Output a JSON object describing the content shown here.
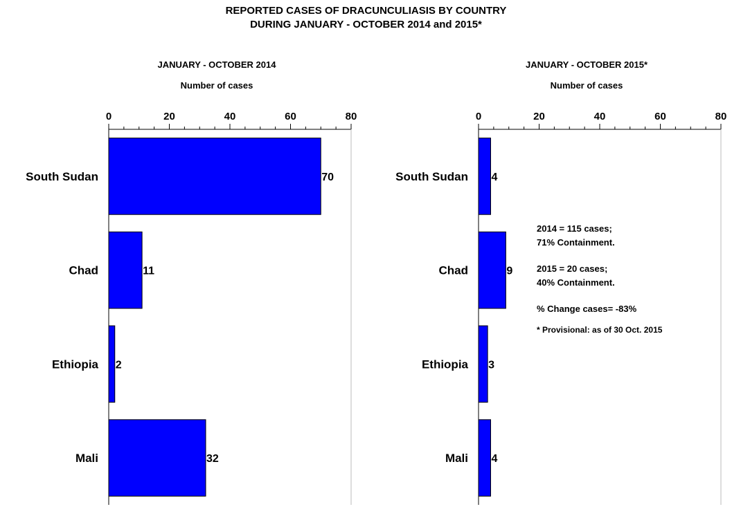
{
  "title": {
    "line1": "REPORTED CASES OF DRACUNCULIASIS BY COUNTRY",
    "line2": "DURING JANUARY - OCTOBER 2014 and 2015*"
  },
  "colors": {
    "bar": "#0000ff",
    "bar_border": "#000000"
  },
  "chart_data": [
    {
      "type": "bar",
      "orientation": "horizontal",
      "title": "JANUARY - OCTOBER 2014",
      "xlabel": "Number of cases",
      "categories": [
        "South Sudan",
        "Chad",
        "Ethiopia",
        "Mali"
      ],
      "values": [
        70,
        11,
        2,
        32
      ],
      "xlim": [
        0,
        80
      ],
      "major_ticks": [
        0,
        20,
        40,
        60,
        80
      ],
      "minor_tick_step": 5,
      "grid": false
    },
    {
      "type": "bar",
      "orientation": "horizontal",
      "title": "JANUARY - OCTOBER 2015*",
      "xlabel": "Number of cases",
      "categories": [
        "South Sudan",
        "Chad",
        "Ethiopia",
        "Mali"
      ],
      "values": [
        4,
        9,
        3,
        4
      ],
      "xlim": [
        0,
        80
      ],
      "major_ticks": [
        0,
        20,
        40,
        60,
        80
      ],
      "minor_tick_step": 5,
      "grid": false
    }
  ],
  "notes": {
    "line1": "2014 = 115 cases;",
    "line2": "71% Containment.",
    "line3": "2015 = 20 cases;",
    "line4": "40% Containment.",
    "line5": "% Change cases= -83%",
    "line6": "* Provisional: as of 30 Oct. 2015"
  }
}
